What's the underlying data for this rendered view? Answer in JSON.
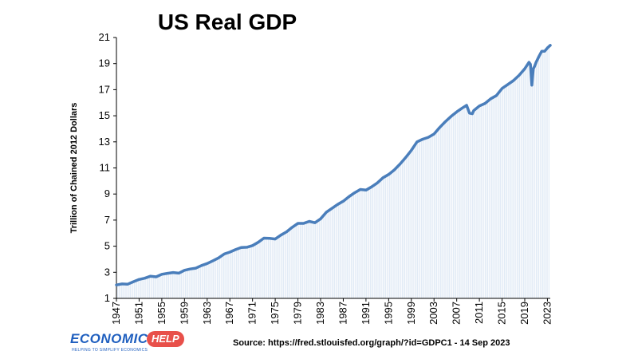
{
  "chart_data": {
    "type": "area",
    "title": "US Real GDP",
    "xlabel": "",
    "ylabel": "Trillion of Chained 2012 Dollars",
    "xlim": [
      1947,
      2023.5
    ],
    "ylim": [
      1,
      21
    ],
    "yticks": [
      1,
      3,
      5,
      7,
      9,
      11,
      13,
      15,
      17,
      19,
      21
    ],
    "xticks": [
      1947,
      1951,
      1955,
      1959,
      1963,
      1967,
      1971,
      1975,
      1979,
      1983,
      1987,
      1991,
      1995,
      1999,
      2003,
      2007,
      2011,
      2015,
      2019,
      2023
    ],
    "grid": false,
    "line_color": "#4a7ebb",
    "fill_color": "#dbe6f4",
    "series": [
      {
        "name": "",
        "points": [
          [
            1947,
            2.03
          ],
          [
            1948,
            2.11
          ],
          [
            1949,
            2.09
          ],
          [
            1950,
            2.28
          ],
          [
            1951,
            2.45
          ],
          [
            1952,
            2.55
          ],
          [
            1953,
            2.7
          ],
          [
            1954,
            2.65
          ],
          [
            1955,
            2.85
          ],
          [
            1956,
            2.92
          ],
          [
            1957,
            2.98
          ],
          [
            1958,
            2.93
          ],
          [
            1959,
            3.15
          ],
          [
            1960,
            3.25
          ],
          [
            1961,
            3.32
          ],
          [
            1962,
            3.52
          ],
          [
            1963,
            3.67
          ],
          [
            1964,
            3.88
          ],
          [
            1965,
            4.1
          ],
          [
            1966,
            4.4
          ],
          [
            1967,
            4.55
          ],
          [
            1968,
            4.74
          ],
          [
            1969,
            4.9
          ],
          [
            1970,
            4.92
          ],
          [
            1971,
            5.05
          ],
          [
            1972,
            5.3
          ],
          [
            1973,
            5.62
          ],
          [
            1974,
            5.6
          ],
          [
            1975,
            5.55
          ],
          [
            1976,
            5.85
          ],
          [
            1977,
            6.1
          ],
          [
            1978,
            6.45
          ],
          [
            1979,
            6.75
          ],
          [
            1980,
            6.75
          ],
          [
            1981,
            6.9
          ],
          [
            1982,
            6.8
          ],
          [
            1983,
            7.1
          ],
          [
            1984,
            7.6
          ],
          [
            1985,
            7.9
          ],
          [
            1986,
            8.2
          ],
          [
            1987,
            8.45
          ],
          [
            1988,
            8.8
          ],
          [
            1989,
            9.1
          ],
          [
            1990,
            9.35
          ],
          [
            1991,
            9.3
          ],
          [
            1992,
            9.55
          ],
          [
            1993,
            9.85
          ],
          [
            1994,
            10.25
          ],
          [
            1995,
            10.5
          ],
          [
            1996,
            10.85
          ],
          [
            1997,
            11.3
          ],
          [
            1998,
            11.8
          ],
          [
            1999,
            12.35
          ],
          [
            2000,
            13.0
          ],
          [
            2001,
            13.2
          ],
          [
            2002,
            13.35
          ],
          [
            2003,
            13.6
          ],
          [
            2004,
            14.1
          ],
          [
            2005,
            14.55
          ],
          [
            2006,
            14.95
          ],
          [
            2007,
            15.3
          ],
          [
            2008,
            15.6
          ],
          [
            2008.75,
            15.8
          ],
          [
            2009.25,
            15.2
          ],
          [
            2009.75,
            15.15
          ],
          [
            2010,
            15.4
          ],
          [
            2011,
            15.75
          ],
          [
            2012,
            15.95
          ],
          [
            2013,
            16.3
          ],
          [
            2014,
            16.55
          ],
          [
            2015,
            17.1
          ],
          [
            2016,
            17.4
          ],
          [
            2017,
            17.7
          ],
          [
            2018,
            18.1
          ],
          [
            2019,
            18.6
          ],
          [
            2019.75,
            19.1
          ],
          [
            2020.0,
            18.95
          ],
          [
            2020.25,
            17.35
          ],
          [
            2020.5,
            18.6
          ],
          [
            2020.75,
            18.8
          ],
          [
            2021,
            19.1
          ],
          [
            2021.5,
            19.55
          ],
          [
            2022,
            19.95
          ],
          [
            2022.5,
            19.95
          ],
          [
            2023,
            20.2
          ],
          [
            2023.5,
            20.4
          ]
        ]
      }
    ]
  },
  "source_text": "Source: https://fred.stlouisfed.org/graph/?id=GDPC1 - 14 Sep 2023",
  "logo": {
    "name": "ECONOMICS",
    "badge": "HELP",
    "tagline": "HELPING TO SIMPLIFY ECONOMICS"
  }
}
